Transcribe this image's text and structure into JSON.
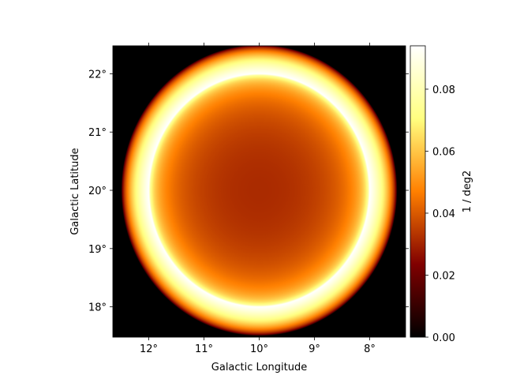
{
  "chart_data": {
    "type": "heatmap",
    "xlabel": "Galactic Longitude",
    "ylabel": "Galactic Latitude",
    "xlim": [
      12.65,
      7.35
    ],
    "ylim": [
      17.48,
      22.48
    ],
    "xticks": [
      12,
      11,
      10,
      9,
      8
    ],
    "xtick_labels": [
      "12°",
      "11°",
      "10°",
      "9°",
      "8°"
    ],
    "yticks": [
      18,
      19,
      20,
      21,
      22
    ],
    "ytick_labels": [
      "18°",
      "19°",
      "20°",
      "21°",
      "22°"
    ],
    "colorbar": {
      "label": "1 / deg2",
      "min": 0.0,
      "max": 0.094,
      "ticks": [
        0.0,
        0.02,
        0.04,
        0.06,
        0.08
      ],
      "tick_labels": [
        "0.00",
        "0.02",
        "0.04",
        "0.06",
        "0.08"
      ],
      "colormap": "afmhot"
    },
    "model": {
      "kind": "projected shell",
      "center_lon": 10.0,
      "center_lat": 20.0,
      "inner_radius_deg": 2.0,
      "outer_radius_deg": 2.5,
      "peak_value": 0.094,
      "center_value": 0.029
    }
  }
}
